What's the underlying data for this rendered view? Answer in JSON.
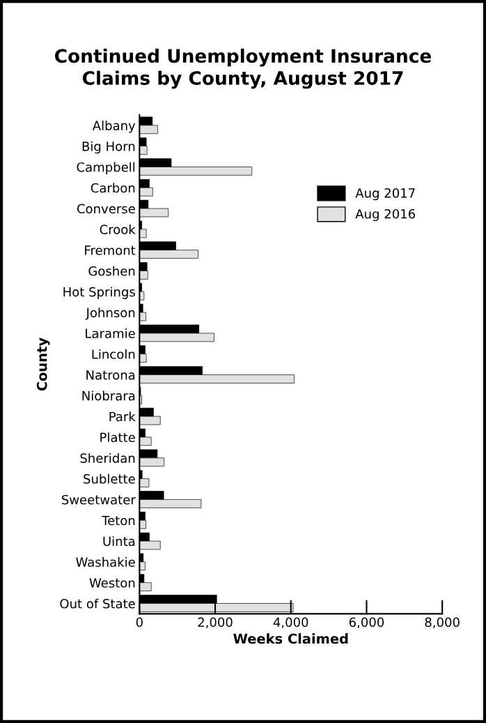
{
  "chart_data": {
    "type": "bar",
    "orientation": "horizontal",
    "title": "Continued Unemployment Insurance\nClaims by County, August 2017",
    "xlabel": "Weeks Claimed",
    "ylabel": "County",
    "categories": [
      "Albany",
      "Big Horn",
      "Campbell",
      "Carbon",
      "Converse",
      "Crook",
      "Fremont",
      "Goshen",
      "Hot Springs",
      "Johnson",
      "Laramie",
      "Lincoln",
      "Natrona",
      "Niobrara",
      "Park",
      "Platte",
      "Sheridan",
      "Sublette",
      "Sweetwater",
      "Teton",
      "Uinta",
      "Washakie",
      "Weston",
      "Out of State"
    ],
    "series": [
      {
        "name": "Aug 2017",
        "color": "#000000",
        "values": [
          340,
          180,
          840,
          260,
          230,
          60,
          960,
          200,
          60,
          90,
          1570,
          150,
          1660,
          30,
          370,
          150,
          470,
          70,
          640,
          150,
          260,
          100,
          120,
          2040
        ]
      },
      {
        "name": "Aug 2016",
        "color": "#e1e1e3",
        "values": [
          480,
          200,
          2970,
          350,
          760,
          180,
          1550,
          220,
          120,
          170,
          1970,
          180,
          4090,
          60,
          550,
          310,
          650,
          250,
          1630,
          170,
          550,
          150,
          310,
          4060
        ]
      }
    ],
    "xlim": [
      0,
      8000
    ],
    "xticks": [
      {
        "value": 0,
        "label": "0"
      },
      {
        "value": 2000,
        "label": "2,000"
      },
      {
        "value": 4000,
        "label": "4,000"
      },
      {
        "value": 6000,
        "label": "6,000"
      },
      {
        "value": 8000,
        "label": "8,000"
      }
    ],
    "grid": false,
    "legend": "top right"
  }
}
